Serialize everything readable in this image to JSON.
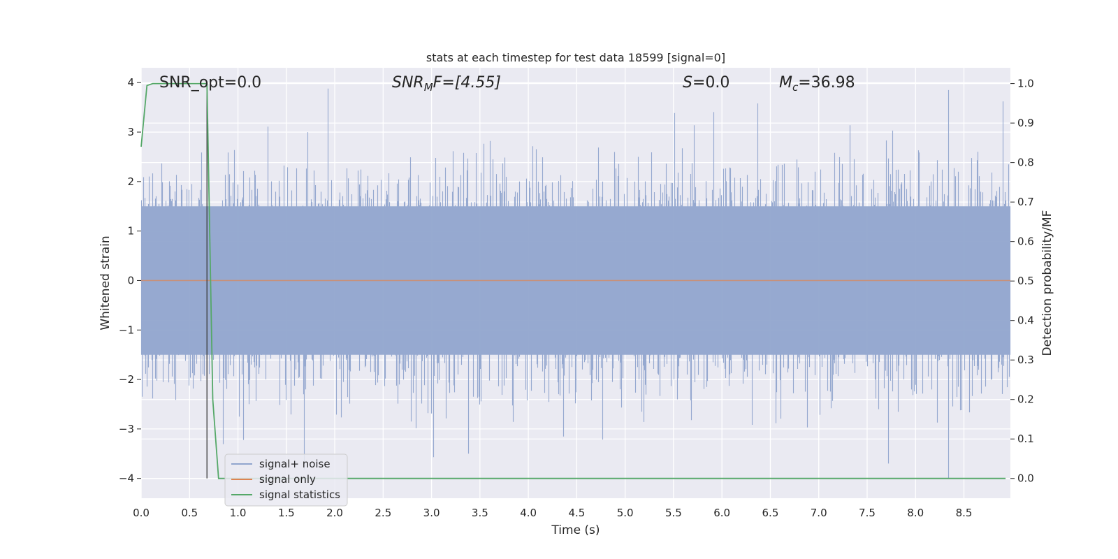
{
  "chart_data": {
    "type": "line",
    "title": "stats at each timestep for test data 18599 [signal=0]",
    "xlabel": "Time (s)",
    "ylabel": "Whitened strain",
    "y2label": "Detection probability/MF",
    "xlim": [
      0.0,
      8.98
    ],
    "ylim": [
      -4.4,
      4.3
    ],
    "y2lim": [
      -0.05,
      1.04
    ],
    "xticks": [
      0.0,
      0.5,
      1.0,
      1.5,
      2.0,
      2.5,
      3.0,
      3.5,
      4.0,
      4.5,
      5.0,
      5.5,
      6.0,
      6.5,
      7.0,
      7.5,
      8.0,
      8.5
    ],
    "xtick_labels": [
      "0.0",
      "0.5",
      "1.0",
      "1.5",
      "2.0",
      "2.5",
      "3.0",
      "3.5",
      "4.0",
      "4.5",
      "5.0",
      "5.5",
      "6.0",
      "6.5",
      "7.0",
      "7.5",
      "8.0",
      "8.5"
    ],
    "yticks": [
      4,
      3,
      2,
      1,
      0,
      -1,
      -2,
      -3,
      -4
    ],
    "ytick_labels": [
      "4",
      "3",
      "2",
      "1",
      "0",
      "−1",
      "−2",
      "−3",
      "−4"
    ],
    "y2ticks": [
      1.0,
      0.9,
      0.8,
      0.7,
      0.6,
      0.5,
      0.4,
      0.3,
      0.2,
      0.1,
      0.0
    ],
    "y2tick_labels": [
      "1.0",
      "0.9",
      "0.8",
      "0.7",
      "0.6",
      "0.5",
      "0.4",
      "0.3",
      "0.2",
      "0.1",
      "0.0"
    ],
    "grid": true,
    "legend_position": "bottom-left",
    "annotations": {
      "snr_opt": "SNR_opt=0.0",
      "snr_mf_base": "SNR",
      "snr_mf_sub": "M",
      "snr_mf_rest": "F=[4.55]",
      "s_var": "S",
      "s_rest": "=0.0",
      "mc_var": "M",
      "mc_sub": "c",
      "mc_rest": "=36.98"
    },
    "vline_x": 0.68,
    "noise_envelope": {
      "p_low": -1.5,
      "p_high": 1.5,
      "max_peak": 3.9,
      "min_peak": -4.0
    },
    "series": [
      {
        "name": "signal+ noise",
        "color": "#91a5ce",
        "axis": "left",
        "note": "whitened noise, ~16384 samples",
        "peaks": [
          {
            "x": 1.93,
            "y": 3.88
          },
          {
            "x": 6.37,
            "y": 3.58
          },
          {
            "x": 8.9,
            "y": 3.62
          },
          {
            "x": 3.38,
            "y": -3.5
          },
          {
            "x": 7.72,
            "y": -3.7
          },
          {
            "x": 8.34,
            "y": -4.0
          }
        ]
      },
      {
        "name": "signal only",
        "color": "#dd8452",
        "axis": "left",
        "x": [
          0.0,
          8.98
        ],
        "y": [
          0.0,
          0.0
        ]
      },
      {
        "name": "signal statistics",
        "color": "#55a868",
        "axis": "right",
        "x": [
          0.0,
          0.06,
          0.12,
          0.2,
          0.3,
          0.4,
          0.5,
          0.6,
          0.68,
          0.74,
          0.8,
          0.9,
          1.5,
          3.0,
          5.0,
          7.0,
          8.93
        ],
        "y": [
          0.84,
          0.995,
          1.0,
          1.0,
          1.0,
          1.0,
          1.0,
          1.0,
          1.0,
          0.2,
          0.0,
          0.0,
          0.0,
          0.0,
          0.0,
          0.0,
          0.0
        ]
      }
    ]
  },
  "colors": {
    "plot_bg": "#eaeaf2",
    "grid": "#ffffff",
    "noise": "#91a5ce",
    "signal": "#dd8452",
    "stats": "#55a868",
    "vline": "#3b3b3b"
  }
}
